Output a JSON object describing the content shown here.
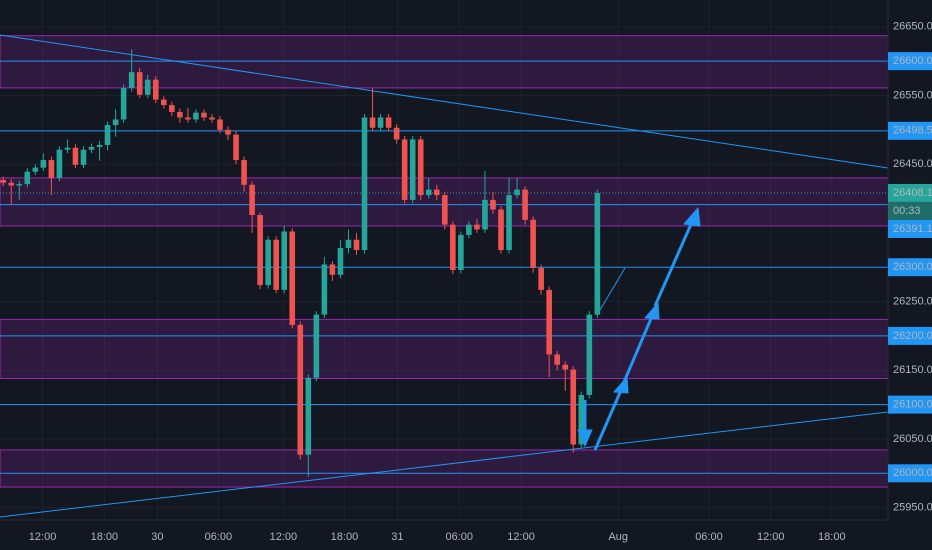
{
  "chart_data": {
    "type": "candlestick",
    "open": [
      26427,
      26423,
      26419,
      26421,
      26439,
      26445,
      26456,
      26430,
      26471,
      26474,
      26449,
      26471,
      26475,
      26478,
      26507,
      26515,
      26561,
      26584,
      26551,
      26573,
      26544,
      26536,
      26526,
      26518,
      26515,
      26525,
      26518,
      26515,
      26500,
      26493,
      26456,
      26420,
      26376,
      26274,
      26340,
      26267,
      26352,
      26216,
      26027,
      26139,
      26231,
      26304,
      26289,
      26328,
      26340,
      26325,
      26518,
      26503,
      26518,
      26503,
      26486,
      26398,
      26486,
      26405,
      26413,
      26405,
      26362,
      26296,
      26347,
      26362,
      26355,
      26398,
      26384,
      26325,
      26405,
      26413,
      26369,
      26299,
      26267,
      26173,
      26158,
      26151,
      26042,
      26114,
      26231
    ],
    "high": [
      26432,
      26428,
      26426,
      26444,
      26450,
      26466,
      26461,
      26476,
      26486,
      26479,
      26476,
      26480,
      26484,
      26512,
      26530,
      26566,
      26617,
      26590,
      26580,
      26578,
      26549,
      26541,
      26531,
      26532,
      26530,
      26530,
      26523,
      26520,
      26505,
      26498,
      26461,
      26425,
      26380,
      26345,
      26345,
      26360,
      26357,
      26221,
      26144,
      26236,
      26315,
      26309,
      26340,
      26355,
      26350,
      26523,
      26561,
      26523,
      26523,
      26508,
      26491,
      26491,
      26491,
      26430,
      26420,
      26410,
      26367,
      26352,
      26367,
      26370,
      26440,
      26410,
      26389,
      26430,
      26430,
      26418,
      26374,
      26304,
      26272,
      26178,
      26163,
      26156,
      26119,
      26236,
      26413
    ],
    "low": [
      26418,
      26391,
      26398,
      26416,
      26434,
      26440,
      26405,
      26425,
      26466,
      26444,
      26444,
      26466,
      26455,
      26470,
      26490,
      26510,
      26556,
      26546,
      26546,
      26539,
      26531,
      26520,
      26510,
      26510,
      26510,
      26513,
      26510,
      26495,
      26485,
      26450,
      26410,
      26350,
      26268,
      26269,
      26262,
      26262,
      26211,
      26020,
      25995,
      26134,
      26226,
      26280,
      26284,
      26320,
      26318,
      26320,
      26498,
      26498,
      26498,
      26480,
      26393,
      26393,
      26398,
      26400,
      26398,
      26355,
      26290,
      26291,
      26342,
      26350,
      26350,
      26378,
      26320,
      26320,
      26400,
      26362,
      26292,
      26260,
      26140,
      26150,
      26120,
      26030,
      26037,
      26109,
      26226
    ],
    "close": [
      26423,
      26419,
      26421,
      26439,
      26445,
      26456,
      26430,
      26471,
      26474,
      26449,
      26471,
      26475,
      26478,
      26507,
      26515,
      26561,
      26584,
      26551,
      26573,
      26544,
      26536,
      26526,
      26518,
      26515,
      26525,
      26518,
      26515,
      26500,
      26493,
      26456,
      26420,
      26376,
      26274,
      26340,
      26267,
      26352,
      26216,
      26027,
      26139,
      26231,
      26304,
      26289,
      26328,
      26340,
      26325,
      26518,
      26503,
      26518,
      26503,
      26486,
      26398,
      26486,
      26405,
      26413,
      26405,
      26362,
      26296,
      26347,
      26362,
      26355,
      26398,
      26384,
      26325,
      26405,
      26413,
      26369,
      26299,
      26267,
      26173,
      26158,
      26151,
      26042,
      26114,
      26231,
      26408.11
    ],
    "up_color": "#26a69a",
    "down_color": "#ef5350",
    "ylim": [
      25932,
      26689
    ],
    "yticks": [
      {
        "value": 26650,
        "label": "26650.00"
      },
      {
        "value": 26550,
        "label": "26550.00"
      },
      {
        "value": 26450,
        "label": "26450.00"
      },
      {
        "value": 26250,
        "label": "26250.00"
      },
      {
        "value": 26150,
        "label": "26150.00"
      },
      {
        "value": 26050,
        "label": "26050.00"
      },
      {
        "value": 25950,
        "label": "25950.00"
      }
    ],
    "xlim": [
      -0.4,
      110.2
    ],
    "xticks": [
      {
        "value": 4.9,
        "label": "12:00"
      },
      {
        "value": 12.6,
        "label": "18:00"
      },
      {
        "value": 19.2,
        "label": "30"
      },
      {
        "value": 26.8,
        "label": "06:00"
      },
      {
        "value": 34.9,
        "label": "12:00"
      },
      {
        "value": 42.5,
        "label": "18:00"
      },
      {
        "value": 49.1,
        "label": "31"
      },
      {
        "value": 56.8,
        "label": "06:00"
      },
      {
        "value": 64.5,
        "label": "12:00"
      },
      {
        "value": 76.6,
        "label": "Aug"
      },
      {
        "value": 87.9,
        "label": "06:00"
      },
      {
        "value": 95.6,
        "label": "12:00"
      },
      {
        "value": 103.2,
        "label": "18:00"
      }
    ],
    "grid": true,
    "level_color": "#2196f3",
    "levels": [
      {
        "value": 26600,
        "label": "26600.00"
      },
      {
        "value": 26498.55,
        "label": "26498.55"
      },
      {
        "value": 26391.11,
        "label": "26391.11"
      },
      {
        "value": 26300,
        "label": "26300.00"
      },
      {
        "value": 26200,
        "label": "26200.00"
      },
      {
        "value": 26100,
        "label": "26100.00"
      },
      {
        "value": 26000,
        "label": "26000.00"
      }
    ],
    "zone_color": "#9c27b0",
    "zones": [
      [
        26637,
        26561
      ],
      [
        26430,
        26360
      ],
      [
        26224,
        26138
      ],
      [
        26034,
        25980
      ]
    ],
    "countdown": "00:33"
  }
}
